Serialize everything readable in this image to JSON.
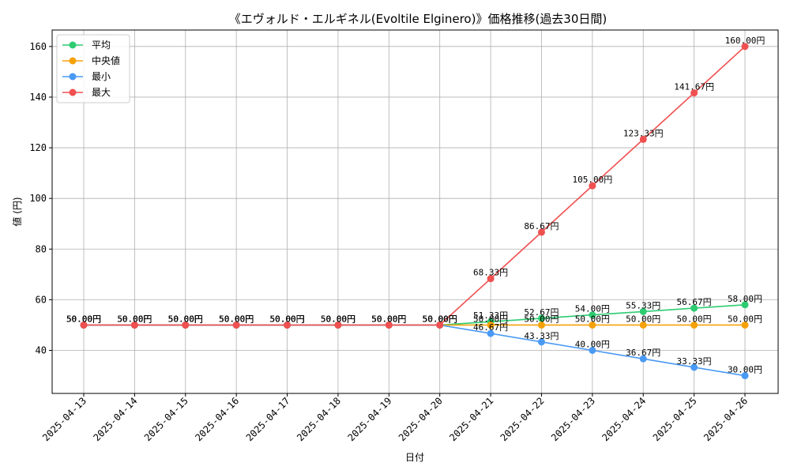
{
  "chart_data": {
    "type": "line",
    "title": "《エヴォルド・エルギネル(Evoltile Elginero)》価格推移(過去30日間)",
    "xlabel": "日付",
    "ylabel": "値 (円)",
    "ylim": [
      23,
      166.5
    ],
    "yticks": [
      40,
      60,
      80,
      100,
      120,
      140,
      160
    ],
    "grid": true,
    "legend_position": "top-left",
    "value_suffix": "円",
    "categories": [
      "2025-04-13",
      "2025-04-14",
      "2025-04-15",
      "2025-04-16",
      "2025-04-17",
      "2025-04-18",
      "2025-04-19",
      "2025-04-20",
      "2025-04-21",
      "2025-04-22",
      "2025-04-23",
      "2025-04-24",
      "2025-04-25",
      "2025-04-26"
    ],
    "series": [
      {
        "name": "平均",
        "color": "#2ecc71",
        "values": [
          50,
          50,
          50,
          50,
          50,
          50,
          50,
          50,
          51.33,
          52.67,
          54.0,
          55.33,
          56.67,
          58.0
        ]
      },
      {
        "name": "中央値",
        "color": "#f5a20a",
        "values": [
          50,
          50,
          50,
          50,
          50,
          50,
          50,
          50,
          50,
          50,
          50,
          50,
          50,
          50
        ]
      },
      {
        "name": "最小",
        "color": "#4a9af5",
        "values": [
          50,
          50,
          50,
          50,
          50,
          50,
          50,
          50,
          46.67,
          43.33,
          40.0,
          36.67,
          33.33,
          30.0
        ]
      },
      {
        "name": "最大",
        "color": "#f05050",
        "values": [
          50,
          50,
          50,
          50,
          50,
          50,
          50,
          50,
          68.33,
          86.67,
          105.0,
          123.33,
          141.67,
          160.0
        ]
      }
    ]
  }
}
